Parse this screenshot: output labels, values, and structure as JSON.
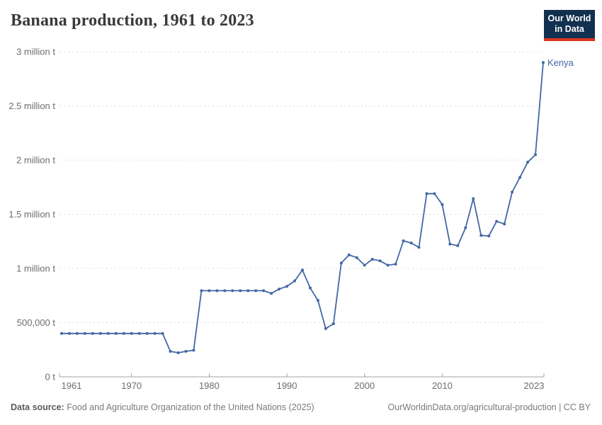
{
  "header": {
    "title": "Banana production, 1961 to 2023",
    "logo": {
      "line1": "Our World",
      "line2": "in Data"
    }
  },
  "colors": {
    "series_blue": "#4268a5",
    "logo_navy": "#12304f",
    "logo_red": "#e0351e"
  },
  "chart_data": {
    "type": "line",
    "title": "Banana production, 1961 to 2023",
    "xlabel": "",
    "ylabel": "",
    "grid": "horizontal-dashed",
    "legend_position": "end-of-line-label",
    "xlim": [
      1961,
      2023
    ],
    "ylim": [
      0,
      3000000
    ],
    "x_ticks": [
      1961,
      1970,
      1980,
      1990,
      2000,
      2010,
      2023
    ],
    "y_ticks": [
      {
        "value": 0,
        "label": "0 t"
      },
      {
        "value": 500000,
        "label": "500,000 t"
      },
      {
        "value": 1000000,
        "label": "1 million t"
      },
      {
        "value": 1500000,
        "label": "1.5 million t"
      },
      {
        "value": 2000000,
        "label": "2 million t"
      },
      {
        "value": 2500000,
        "label": "2.5 million t"
      },
      {
        "value": 3000000,
        "label": "3 million t"
      }
    ],
    "series": [
      {
        "name": "Kenya",
        "color": "#4268a5",
        "x": [
          1961,
          1962,
          1963,
          1964,
          1965,
          1966,
          1967,
          1968,
          1969,
          1970,
          1971,
          1972,
          1973,
          1974,
          1975,
          1976,
          1977,
          1978,
          1979,
          1980,
          1981,
          1982,
          1983,
          1984,
          1985,
          1986,
          1987,
          1988,
          1989,
          1990,
          1991,
          1992,
          1993,
          1994,
          1995,
          1996,
          1997,
          1998,
          1999,
          2000,
          2001,
          2002,
          2003,
          2004,
          2005,
          2006,
          2007,
          2008,
          2009,
          2010,
          2011,
          2012,
          2013,
          2014,
          2015,
          2016,
          2017,
          2018,
          2019,
          2020,
          2021,
          2022,
          2023
        ],
        "values": [
          400000,
          400000,
          400000,
          400000,
          400000,
          400000,
          400000,
          400000,
          400000,
          400000,
          400000,
          400000,
          400000,
          400000,
          235000,
          222000,
          235000,
          245000,
          795000,
          795000,
          795000,
          795000,
          795000,
          795000,
          795000,
          795000,
          795000,
          770000,
          810000,
          835000,
          885000,
          985000,
          820000,
          705000,
          445000,
          490000,
          1050000,
          1125000,
          1100000,
          1030000,
          1085000,
          1070000,
          1030000,
          1040000,
          1255000,
          1235000,
          1195000,
          1690000,
          1690000,
          1590000,
          1225000,
          1210000,
          1375000,
          1645000,
          1305000,
          1300000,
          1435000,
          1410000,
          1705000,
          1840000,
          1980000,
          2050000,
          2900000
        ]
      }
    ]
  },
  "footer": {
    "datasource_label": "Data source:",
    "datasource_text": " Food and Agriculture Organization of the United Nations (2025)",
    "link_text": "OurWorldinData.org/agricultural-production | CC BY"
  }
}
